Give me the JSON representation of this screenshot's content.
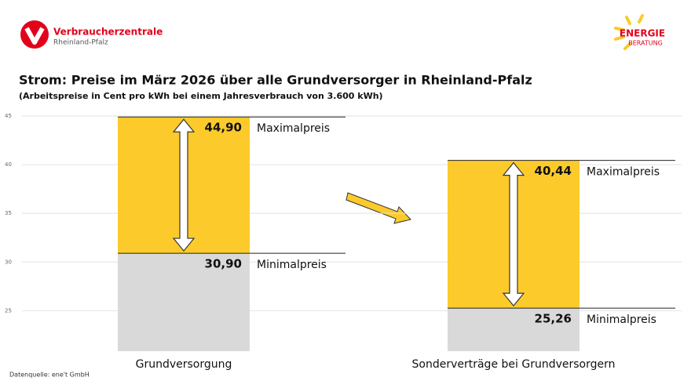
{
  "logos": {
    "left": {
      "name": "Verbraucherzentrale",
      "region": "Rheinland-Pfalz"
    },
    "right": {
      "name": "ENERGIE",
      "sub": "BERATUNG"
    }
  },
  "chart_data": {
    "type": "range",
    "title": "Strom: Preise im März 2026 über alle Grundversorger in Rheinland-Pfalz",
    "subtitle": "(Arbeitspreise in Cent pro kWh bei einem Jahresverbrauch von 3.600 kWh)",
    "source": "Datenquelle: ene't GmbH",
    "categories": [
      "Grundversorgung",
      "Sonderverträge bei Grundversorgern"
    ],
    "series": [
      {
        "name": "Minimalpreis",
        "color": "#d9d9d9",
        "values": [
          30.9,
          25.26
        ],
        "value_labels": [
          "30,90",
          "25,26"
        ]
      },
      {
        "name": "Maximalpreis",
        "color": "#fccb2b",
        "values": [
          44.9,
          40.44
        ],
        "value_labels": [
          "44,90",
          "40,44"
        ]
      }
    ],
    "ylim": [
      21,
      45
    ],
    "yticks": [
      25,
      30,
      35,
      40,
      45
    ],
    "grid": true
  }
}
